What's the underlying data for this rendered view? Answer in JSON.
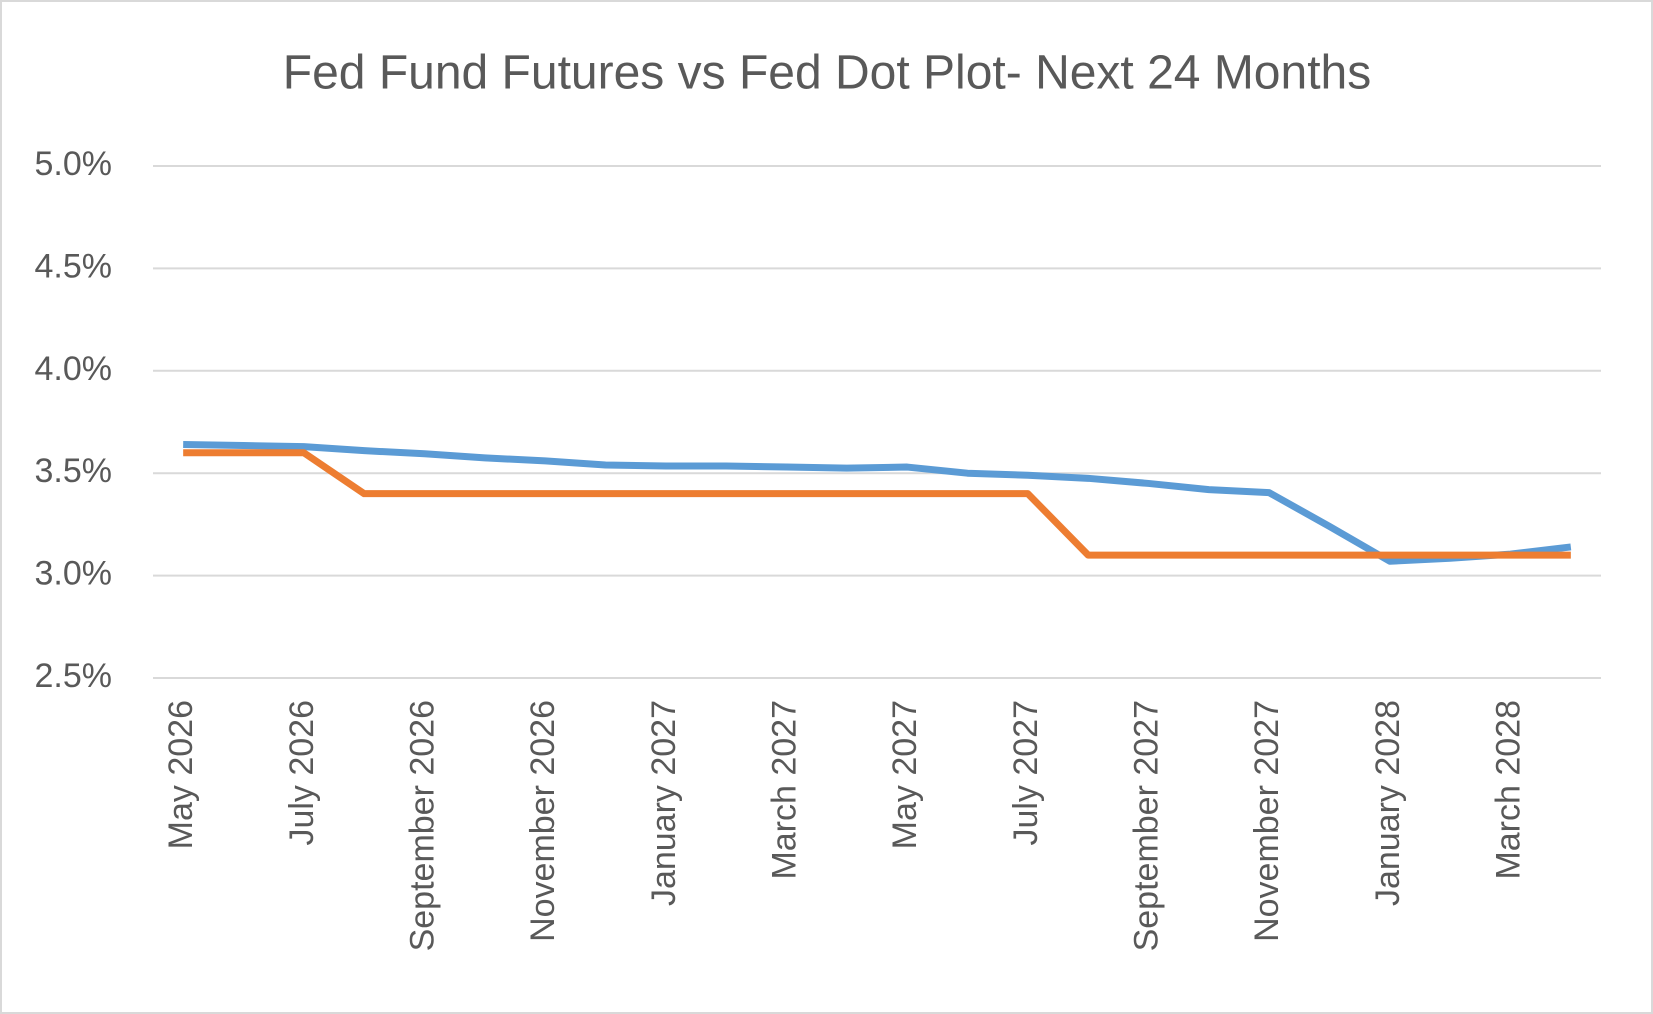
{
  "chart_data": {
    "type": "line",
    "title": "Fed Fund Futures vs Fed Dot Plot- Next 24 Months",
    "categories": [
      "May 2026",
      null,
      "July 2026",
      null,
      "September 2026",
      null,
      "November 2026",
      null,
      "January 2027",
      null,
      "March 2027",
      null,
      "May 2027",
      null,
      "July 2027",
      null,
      "September 2027",
      null,
      "November 2027",
      null,
      "January 2028",
      null,
      "March 2028",
      null
    ],
    "series": [
      {
        "color": "#5b9bd5",
        "values": [
          3.64,
          3.635,
          3.63,
          3.61,
          3.595,
          3.575,
          3.56,
          3.54,
          3.535,
          3.535,
          3.53,
          3.525,
          3.53,
          3.5,
          3.49,
          3.475,
          3.45,
          3.42,
          3.405,
          3.24,
          3.07,
          3.085,
          3.105,
          3.14
        ]
      },
      {
        "color": "#ed7d31",
        "values": [
          3.6,
          3.6,
          3.6,
          3.4,
          3.4,
          3.4,
          3.4,
          3.4,
          3.4,
          3.4,
          3.4,
          3.4,
          3.4,
          3.4,
          3.4,
          3.1,
          3.1,
          3.1,
          3.1,
          3.1,
          3.1,
          3.1,
          3.1,
          3.1
        ]
      }
    ],
    "ylim": [
      2.5,
      5.0
    ],
    "yticks": [
      {
        "value": 2.5,
        "label": "2.5%"
      },
      {
        "value": 3.0,
        "label": "3.0%"
      },
      {
        "value": 3.5,
        "label": "3.5%"
      },
      {
        "value": 4.0,
        "label": "4.0%"
      },
      {
        "value": 4.5,
        "label": "4.5%"
      },
      {
        "value": 5.0,
        "label": "5.0%"
      }
    ],
    "grid": true
  }
}
